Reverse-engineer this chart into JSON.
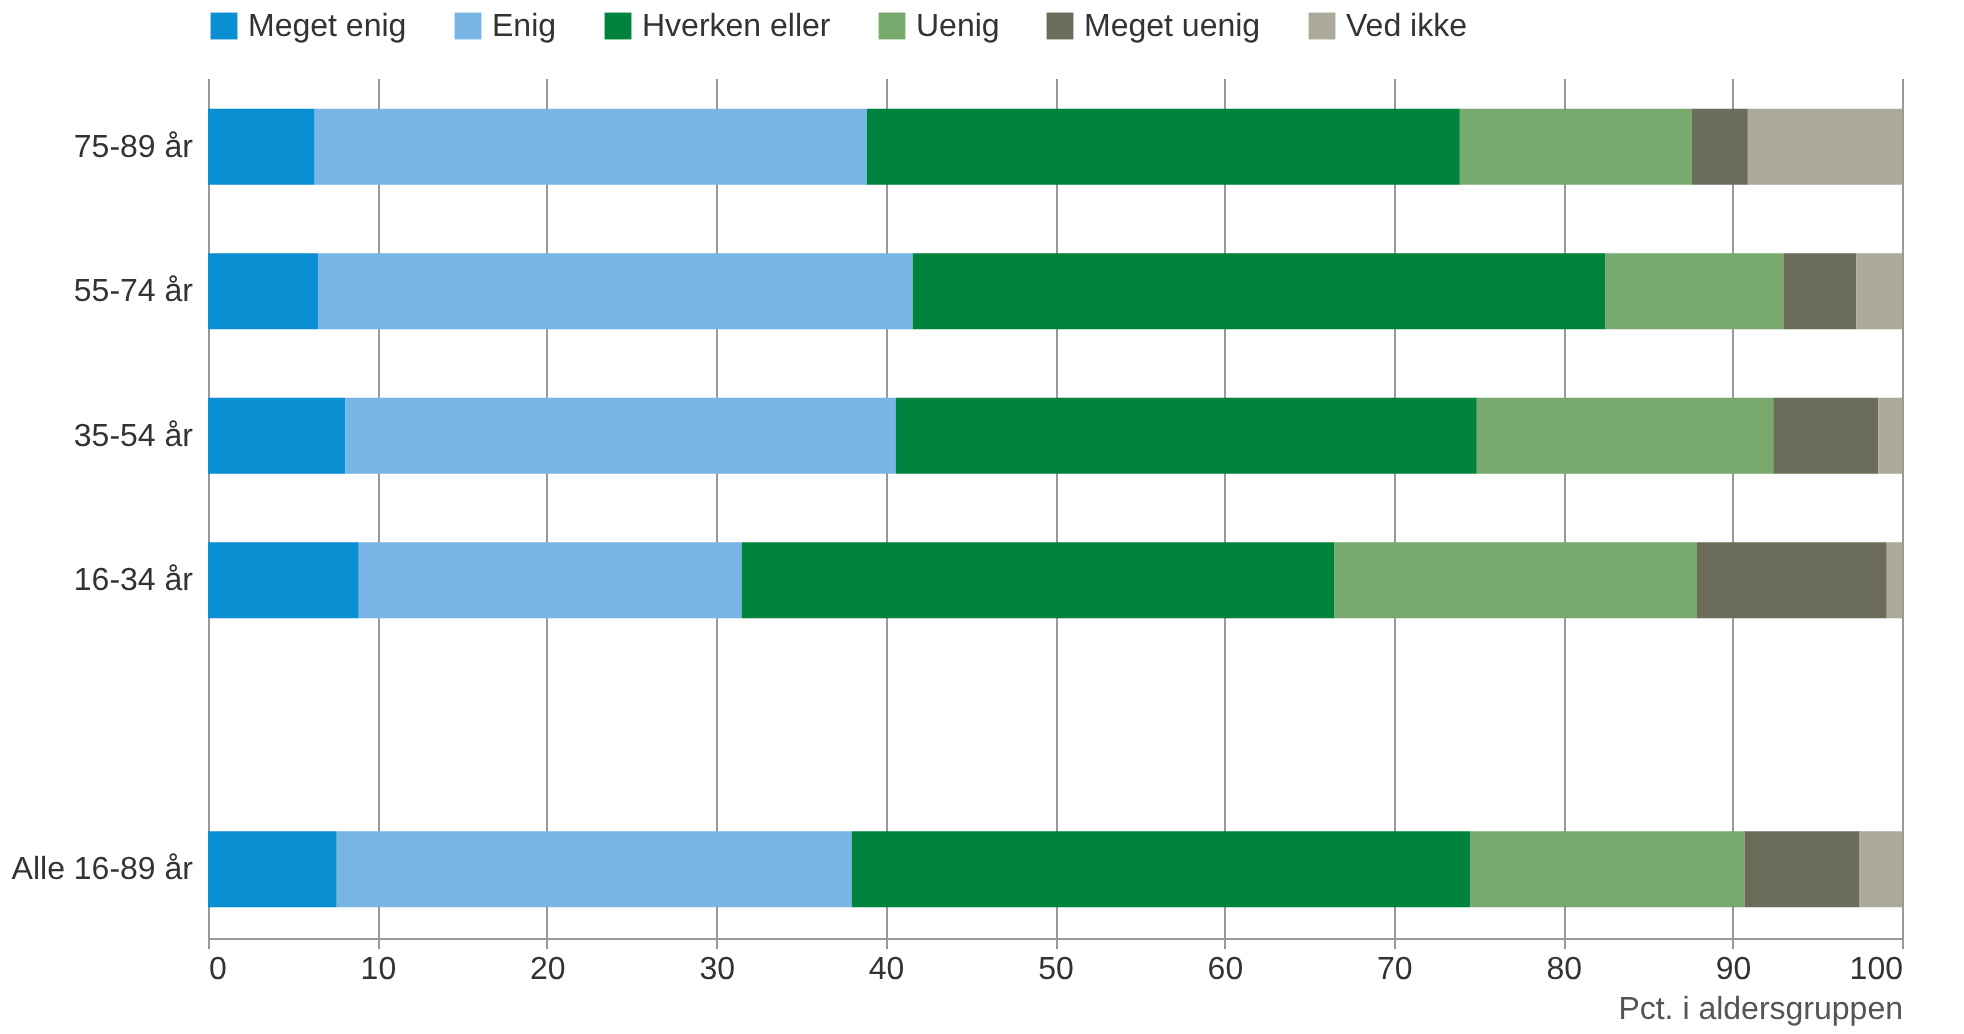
{
  "chart_data": {
    "type": "bar",
    "orientation": "horizontal",
    "stacked": true,
    "xlabel": "Pct. i aldersgruppen",
    "categories": [
      "75-89 år",
      "55-74 år",
      "35-54 år",
      "16-34 år",
      null,
      "Alle 16-89 år"
    ],
    "series": [
      {
        "name": "Meget enig",
        "color": "#0a8fd2",
        "values": [
          6.3,
          6.5,
          8.1,
          8.9,
          null,
          7.6
        ]
      },
      {
        "name": "Enig",
        "color": "#76b5e4",
        "values": [
          32.6,
          35.1,
          32.5,
          22.6,
          null,
          30.4
        ]
      },
      {
        "name": "Hverken eller",
        "color": "#00843d",
        "values": [
          35.0,
          40.9,
          34.3,
          35.0,
          null,
          36.5
        ]
      },
      {
        "name": "Uenig",
        "color": "#78aa6e",
        "values": [
          13.7,
          10.5,
          17.5,
          21.4,
          null,
          16.2
        ]
      },
      {
        "name": "Meget uenig",
        "color": "#6c6c5b",
        "values": [
          3.3,
          4.3,
          6.2,
          11.2,
          null,
          6.8
        ]
      },
      {
        "name": "Ved ikke",
        "color": "#ada99b",
        "values": [
          9.1,
          2.7,
          1.4,
          0.9,
          null,
          2.5
        ]
      }
    ],
    "xlim": [
      0,
      100
    ],
    "xticks": [
      0,
      10,
      20,
      30,
      40,
      50,
      60,
      70,
      80,
      90,
      100
    ],
    "grid": "x",
    "legend": "top"
  }
}
